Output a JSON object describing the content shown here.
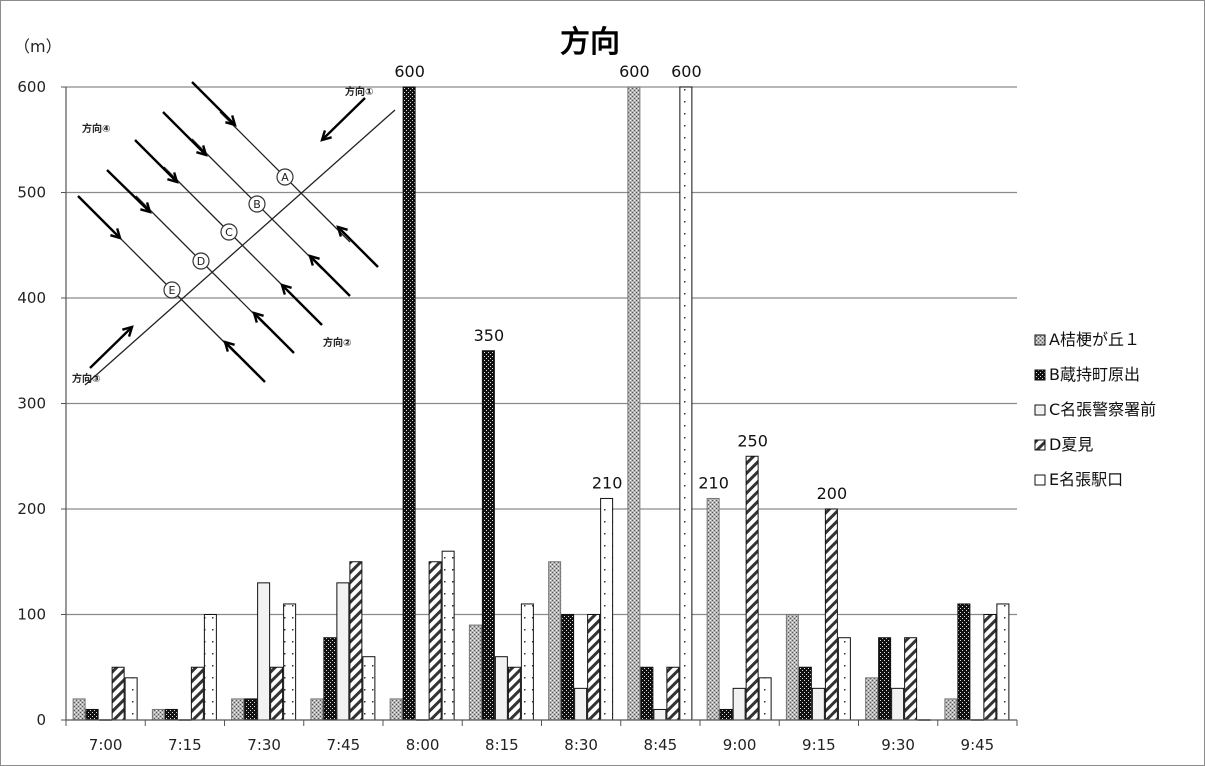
{
  "chart_data": {
    "type": "bar",
    "title": "方向",
    "ylabel": "（m）",
    "ylim": [
      0,
      600
    ],
    "yticks": [
      "0",
      "100",
      "200",
      "300",
      "400",
      "500",
      "600"
    ],
    "categories": [
      "7:00",
      "7:15",
      "7:30",
      "7:45",
      "8:00",
      "8:15",
      "8:30",
      "8:45",
      "9:00",
      "9:15",
      "9:30",
      "9:45"
    ],
    "series": [
      {
        "name": "A桔梗が丘１",
        "values": [
          20,
          10,
          20,
          20,
          20,
          90,
          150,
          600,
          210,
          100,
          40,
          20
        ]
      },
      {
        "name": "B蔵持町原出",
        "values": [
          10,
          10,
          20,
          78,
          600,
          350,
          100,
          50,
          10,
          50,
          78,
          110
        ]
      },
      {
        "name": "C名張警察署前",
        "values": [
          0,
          0,
          130,
          130,
          0,
          60,
          30,
          10,
          30,
          30,
          30,
          0
        ]
      },
      {
        "name": "D夏見",
        "values": [
          50,
          50,
          50,
          150,
          150,
          50,
          100,
          50,
          250,
          200,
          78,
          100
        ]
      },
      {
        "name": "E名張駅口",
        "values": [
          40,
          100,
          110,
          60,
          160,
          110,
          210,
          600,
          40,
          78,
          0,
          110
        ]
      }
    ],
    "data_labels": [
      {
        "category": "8:00",
        "series": 1,
        "text": "600"
      },
      {
        "category": "8:15",
        "series": 1,
        "text": "350"
      },
      {
        "category": "8:30",
        "series": 4,
        "text": "210"
      },
      {
        "category": "8:45",
        "series": 0,
        "text": "600"
      },
      {
        "category": "8:45",
        "series": 4,
        "text": "600"
      },
      {
        "category": "9:00",
        "series": 0,
        "text": "210"
      },
      {
        "category": "9:00",
        "series": 3,
        "text": "250"
      },
      {
        "category": "9:15",
        "series": 3,
        "text": "200"
      }
    ],
    "legend_position": "right",
    "grid": true
  },
  "inset": {
    "directions": [
      "方向①",
      "方向②",
      "方向③",
      "方向④"
    ],
    "nodes": [
      "A",
      "B",
      "C",
      "D",
      "E"
    ]
  }
}
